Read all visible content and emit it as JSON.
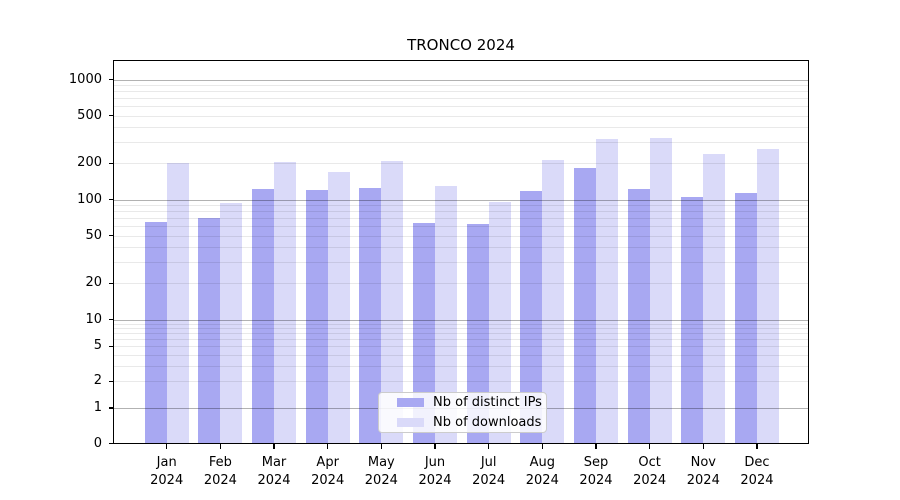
{
  "chart_data": {
    "type": "bar",
    "title": "TRONCO 2024",
    "categories": [
      "Jan 2024",
      "Feb 2024",
      "Mar 2024",
      "Apr 2024",
      "May 2024",
      "Jun 2024",
      "Jul 2024",
      "Aug 2024",
      "Sep 2024",
      "Oct 2024",
      "Nov 2024",
      "Dec 2024"
    ],
    "series": [
      {
        "name": "Nb of distinct IPs",
        "color": "#a8a8f2",
        "values": [
          65,
          70,
          122,
          120,
          125,
          64,
          63,
          118,
          183,
          122,
          105,
          113
        ]
      },
      {
        "name": "Nb of downloads",
        "color": "#dadaf9",
        "values": [
          200,
          94,
          205,
          168,
          210,
          130,
          96,
          212,
          320,
          325,
          240,
          263
        ]
      }
    ],
    "y_axis": {
      "scale": "symlog",
      "ticks": [
        0,
        1,
        2,
        5,
        10,
        20,
        50,
        100,
        200,
        500,
        1000
      ],
      "ylim": [
        0,
        1430
      ]
    },
    "x_axis": {
      "tick_mode": "month-year-two-lines"
    },
    "grid": {
      "axis": "y",
      "major": true,
      "minor": true,
      "on_top": true
    },
    "legend": {
      "position": "lower center"
    }
  }
}
